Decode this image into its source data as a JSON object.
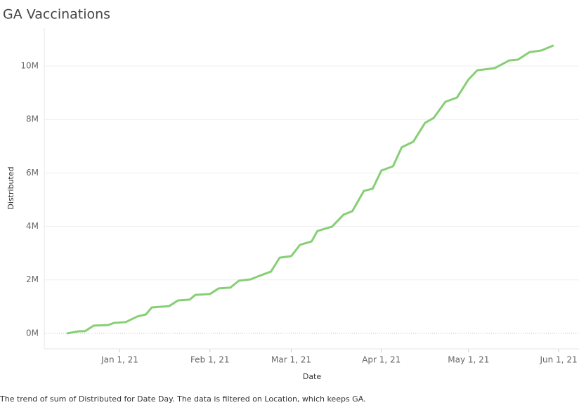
{
  "chart_data": {
    "type": "line",
    "title": "GA Vaccinations",
    "x_label": "Date",
    "y_label": "Distributed",
    "caption": "The trend of sum of Distributed for Date Day. The data is filtered on Location, which keeps GA.",
    "x": [
      "2020-12-14",
      "2020-12-18",
      "2020-12-20",
      "2020-12-23",
      "2020-12-28",
      "2020-12-30",
      "2021-01-03",
      "2021-01-07",
      "2021-01-10",
      "2021-01-12",
      "2021-01-18",
      "2021-01-21",
      "2021-01-25",
      "2021-01-27",
      "2021-02-01",
      "2021-02-04",
      "2021-02-08",
      "2021-02-11",
      "2021-02-15",
      "2021-02-18",
      "2021-02-22",
      "2021-02-25",
      "2021-03-01",
      "2021-03-04",
      "2021-03-08",
      "2021-03-10",
      "2021-03-15",
      "2021-03-19",
      "2021-03-22",
      "2021-03-26",
      "2021-03-29",
      "2021-04-01",
      "2021-04-05",
      "2021-04-08",
      "2021-04-12",
      "2021-04-16",
      "2021-04-19",
      "2021-04-23",
      "2021-04-27",
      "2021-05-01",
      "2021-05-04",
      "2021-05-10",
      "2021-05-15",
      "2021-05-18",
      "2021-05-22",
      "2021-05-26",
      "2021-05-30"
    ],
    "series": [
      {
        "name": "Distributed",
        "color": "#86cf75",
        "values": [
          0,
          80000,
          80000,
          290000,
          310000,
          390000,
          420000,
          630000,
          710000,
          970000,
          1020000,
          1230000,
          1260000,
          1440000,
          1470000,
          1680000,
          1710000,
          1970000,
          2020000,
          2150000,
          2310000,
          2830000,
          2890000,
          3310000,
          3440000,
          3830000,
          3990000,
          4440000,
          4570000,
          5330000,
          5410000,
          6090000,
          6250000,
          6960000,
          7170000,
          7870000,
          8060000,
          8660000,
          8820000,
          9500000,
          9840000,
          9920000,
          10210000,
          10240000,
          10520000,
          10580000,
          10760000
        ]
      }
    ],
    "xlim": [
      "2020-12-06",
      "2021-06-08"
    ],
    "xticks": [
      {
        "value": "2021-01-01",
        "label": "Jan 1, 21"
      },
      {
        "value": "2021-02-01",
        "label": "Feb 1, 21"
      },
      {
        "value": "2021-03-01",
        "label": "Mar 1, 21"
      },
      {
        "value": "2021-04-01",
        "label": "Apr 1, 21"
      },
      {
        "value": "2021-05-01",
        "label": "May 1, 21"
      },
      {
        "value": "2021-06-01",
        "label": "Jun 1, 21"
      }
    ],
    "ylim": [
      -580000,
      11420000
    ],
    "yticks": [
      {
        "value": 0,
        "label": "0M"
      },
      {
        "value": 2000000,
        "label": "2M"
      },
      {
        "value": 4000000,
        "label": "4M"
      },
      {
        "value": 6000000,
        "label": "6M"
      },
      {
        "value": 8000000,
        "label": "8M"
      },
      {
        "value": 10000000,
        "label": "10M"
      }
    ],
    "grid": true
  }
}
